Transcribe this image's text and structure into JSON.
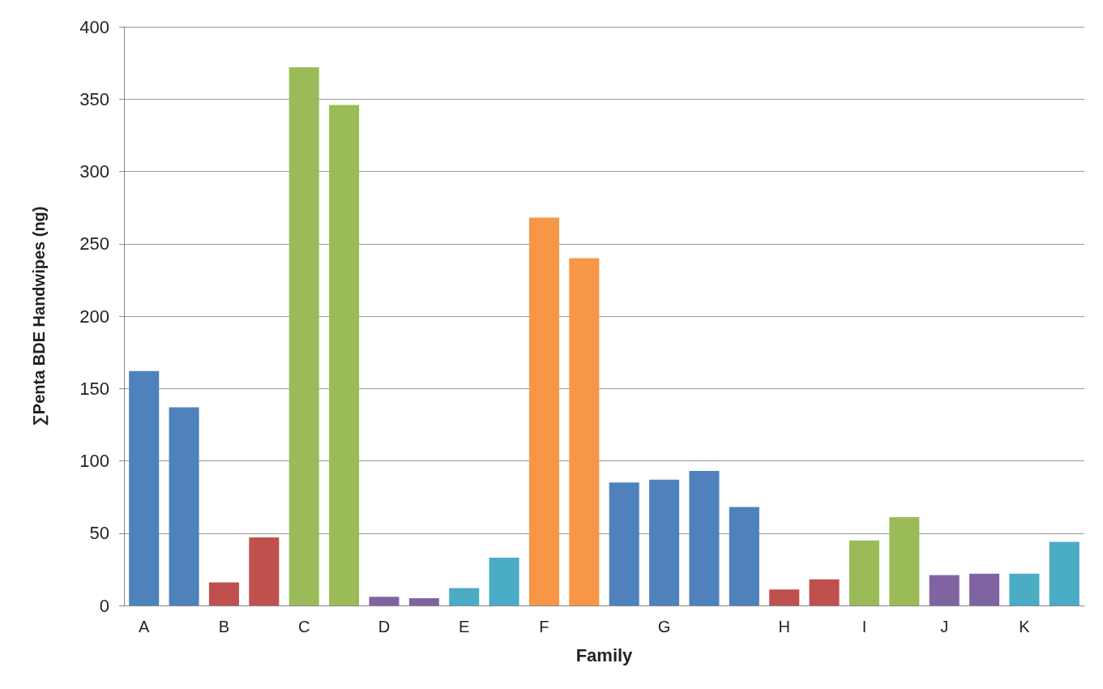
{
  "chart_data": {
    "type": "bar",
    "xlabel": "Family",
    "ylabel": "∑Penta BDE Handwipes (ng)",
    "categories": [
      "A",
      null,
      "B",
      null,
      "C",
      null,
      "D",
      null,
      "E",
      null,
      "F",
      null,
      null,
      "G",
      null,
      null,
      "H",
      null,
      "I",
      null,
      "J",
      null,
      "K",
      null
    ],
    "values": [
      162,
      137,
      16,
      47,
      372,
      346,
      6,
      5,
      12,
      33,
      268,
      240,
      85,
      87,
      93,
      68,
      11,
      18,
      45,
      61,
      21,
      22,
      22,
      44
    ],
    "colors": [
      "#4f81bd",
      "#4f81bd",
      "#c0504d",
      "#c0504d",
      "#9bbb59",
      "#9bbb59",
      "#8064a2",
      "#8064a2",
      "#4bacc6",
      "#4bacc6",
      "#f79646",
      "#f79646",
      "#4f81bd",
      "#4f81bd",
      "#4f81bd",
      "#4f81bd",
      "#c0504d",
      "#c0504d",
      "#9bbb59",
      "#9bbb59",
      "#8064a2",
      "#8064a2",
      "#4bacc6",
      "#4bacc6"
    ],
    "ylim": [
      0,
      400
    ],
    "yticks": [
      0,
      50,
      100,
      150,
      200,
      250,
      300,
      350,
      400
    ],
    "grid": "y"
  }
}
